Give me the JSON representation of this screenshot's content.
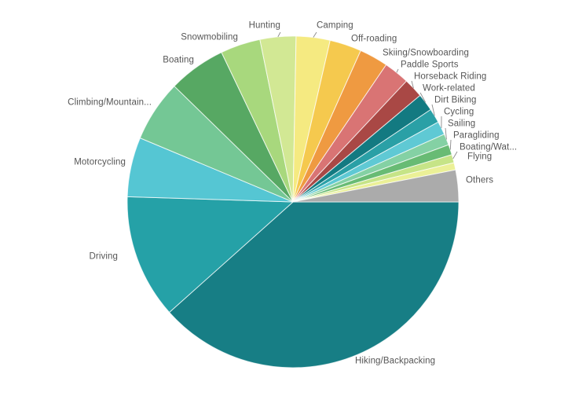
{
  "chart": {
    "background": "#ffffff",
    "label_color": "#565656",
    "separator_color": "#ffffff",
    "start_angle_deg": 90,
    "direction": "clockwise"
  },
  "chart_data": {
    "type": "pie",
    "title": "",
    "legend_position": "none",
    "labels": "outside-with-leader-lines",
    "unit": "share_percent_estimated",
    "slices": [
      {
        "label": "Hiking/Backpacking",
        "value": 38.4,
        "color": "#177E85"
      },
      {
        "label": "Driving",
        "value": 12.1,
        "color": "#25A1A7"
      },
      {
        "label": "Motorcycling",
        "value": 5.8,
        "color": "#55C6D3"
      },
      {
        "label": "Climbing/Mountain...",
        "value": 6.0,
        "color": "#74C795"
      },
      {
        "label": "Boating",
        "value": 5.6,
        "color": "#57A863"
      },
      {
        "label": "Snowmobiling",
        "value": 3.9,
        "color": "#A8D87D"
      },
      {
        "label": "Hunting",
        "value": 3.5,
        "color": "#D2E894"
      },
      {
        "label": "Camping",
        "value": 3.3,
        "color": "#F5EA81"
      },
      {
        "label": "Off-roading",
        "value": 3.1,
        "color": "#F5C94E"
      },
      {
        "label": "Skiing/Snowboarding",
        "value": 2.8,
        "color": "#EF9A41"
      },
      {
        "label": "Paddle Sports",
        "value": 2.5,
        "color": "#D97474"
      },
      {
        "label": "Horseback Riding",
        "value": 1.9,
        "color": "#A94845"
      },
      {
        "label": "Work-related",
        "value": 1.7,
        "color": "#137A81"
      },
      {
        "label": "Dirt Biking",
        "value": 1.4,
        "color": "#2AA0A6"
      },
      {
        "label": "Cycling",
        "value": 1.3,
        "color": "#5FC9D4"
      },
      {
        "label": "Sailing",
        "value": 1.1,
        "color": "#84D1A4"
      },
      {
        "label": "Paragliding",
        "value": 1.0,
        "color": "#68BB74"
      },
      {
        "label": "Boating/Wat...",
        "value": 0.8,
        "color": "#C6E487"
      },
      {
        "label": "Flying",
        "value": 0.7,
        "color": "#EBF097"
      },
      {
        "label": "Others",
        "value": 3.1,
        "color": "#ABABAB"
      }
    ]
  }
}
